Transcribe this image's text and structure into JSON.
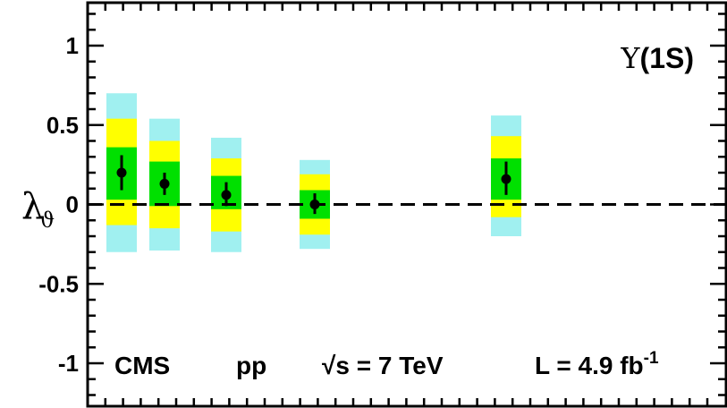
{
  "chart_data": {
    "type": "scatter",
    "title": "Υ(1S)",
    "ylabel": "λ",
    "ylabel_sub": "ϑ",
    "ylim": [
      -1.25,
      1.25
    ],
    "yticks": [
      1,
      0.5,
      0,
      -0.5,
      -1
    ],
    "ytick_labels": [
      "1",
      "0.5",
      "0",
      "-0.5",
      "-1"
    ],
    "reference_line": {
      "y": 0,
      "style": "dashed"
    },
    "band_colors": {
      "sigma1": "#00e000",
      "sigma2": "#ffff00",
      "sigma3": "#a0f0f0"
    },
    "annotations": {
      "experiment": "CMS",
      "collision": "pp",
      "energy_sqrt": "√s",
      "energy_value": " = 7 TeV",
      "lumi": "L = 4.9 fb",
      "lumi_exp": "-1"
    },
    "points": [
      {
        "y": 0.2,
        "err_lo": 0.11,
        "err_hi": 0.11,
        "band1": [
          0.03,
          0.36
        ],
        "band2": [
          -0.13,
          0.54
        ],
        "band3": [
          -0.3,
          0.7
        ]
      },
      {
        "y": 0.13,
        "err_lo": 0.07,
        "err_hi": 0.07,
        "band1": [
          -0.01,
          0.27
        ],
        "band2": [
          -0.15,
          0.4
        ],
        "band3": [
          -0.29,
          0.54
        ]
      },
      {
        "y": 0.06,
        "err_lo": 0.07,
        "err_hi": 0.08,
        "band1": [
          -0.03,
          0.18
        ],
        "band2": [
          -0.17,
          0.29
        ],
        "band3": [
          -0.3,
          0.42
        ]
      },
      {
        "y": 0.0,
        "err_lo": 0.06,
        "err_hi": 0.07,
        "band1": [
          -0.09,
          0.09
        ],
        "band2": [
          -0.19,
          0.19
        ],
        "band3": [
          -0.28,
          0.28
        ]
      },
      {
        "y": 0.16,
        "err_lo": 0.1,
        "err_hi": 0.11,
        "band1": [
          0.03,
          0.29
        ],
        "band2": [
          -0.08,
          0.43
        ],
        "band3": [
          -0.2,
          0.56
        ]
      }
    ]
  }
}
